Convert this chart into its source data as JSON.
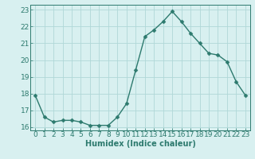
{
  "x": [
    0,
    1,
    2,
    3,
    4,
    5,
    6,
    7,
    8,
    9,
    10,
    11,
    12,
    13,
    14,
    15,
    16,
    17,
    18,
    19,
    20,
    21,
    22,
    23
  ],
  "y": [
    17.9,
    16.6,
    16.3,
    16.4,
    16.4,
    16.3,
    16.1,
    16.1,
    16.1,
    16.6,
    17.4,
    19.4,
    21.4,
    21.8,
    22.3,
    22.9,
    22.3,
    21.6,
    21.0,
    20.4,
    20.3,
    19.9,
    18.7,
    17.9
  ],
  "line_color": "#2d7a6e",
  "marker": "D",
  "markersize": 2.5,
  "linewidth": 1.0,
  "bg_color": "#d8f0f0",
  "grid_color": "#b0d8d8",
  "xlabel": "Humidex (Indice chaleur)",
  "xlim": [
    -0.5,
    23.5
  ],
  "ylim": [
    15.8,
    23.3
  ],
  "yticks": [
    16,
    17,
    18,
    19,
    20,
    21,
    22,
    23
  ],
  "xticks": [
    0,
    1,
    2,
    3,
    4,
    5,
    6,
    7,
    8,
    9,
    10,
    11,
    12,
    13,
    14,
    15,
    16,
    17,
    18,
    19,
    20,
    21,
    22,
    23
  ],
  "xlabel_fontsize": 7,
  "tick_fontsize": 6.5
}
